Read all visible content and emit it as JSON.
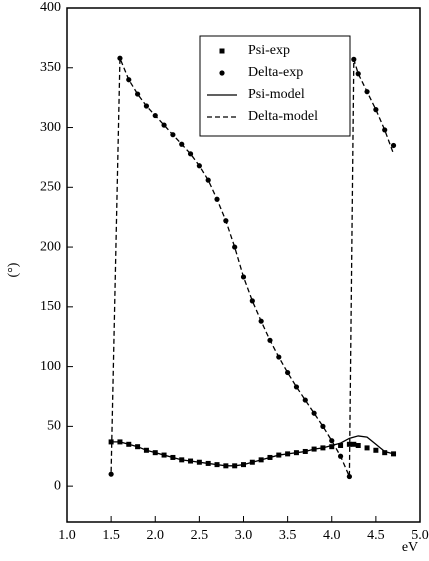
{
  "chart_data": {
    "type": "line",
    "xlabel": "eV",
    "ylabel": "(°)",
    "xlim": [
      1.0,
      5.0
    ],
    "xticks": [
      {
        "value": 1.0,
        "label": "1.0"
      },
      {
        "value": 1.5,
        "label": "1.5"
      },
      {
        "value": 2.0,
        "label": "2.0"
      },
      {
        "value": 2.5,
        "label": "2.5"
      },
      {
        "value": 3.0,
        "label": "3.0"
      },
      {
        "value": 3.5,
        "label": "3.5"
      },
      {
        "value": 4.0,
        "label": "4.0"
      },
      {
        "value": 4.5,
        "label": "4.5"
      },
      {
        "value": 5.0,
        "label": "5.0"
      }
    ],
    "ylim": [
      -30,
      400
    ],
    "yticks": [
      0,
      50,
      100,
      150,
      200,
      250,
      300,
      350,
      400
    ],
    "legend": "upper right",
    "x": [
      1.5,
      1.6,
      1.7,
      1.8,
      1.9,
      2.0,
      2.1,
      2.2,
      2.3,
      2.4,
      2.5,
      2.6,
      2.7,
      2.8,
      2.9,
      3.0,
      3.1,
      3.2,
      3.3,
      3.4,
      3.5,
      3.6,
      3.7,
      3.8,
      3.9,
      4.0,
      4.1,
      4.2,
      4.25,
      4.3,
      4.4,
      4.5,
      4.6,
      4.7
    ],
    "series": [
      {
        "name": "Psi-exp",
        "color": "#000000",
        "marker": "square",
        "values": [
          37,
          37,
          35,
          33,
          30,
          28,
          26,
          24,
          22,
          21,
          20,
          19,
          18,
          17,
          17,
          18,
          20,
          22,
          24,
          26,
          27,
          28,
          29,
          31,
          32,
          33,
          34,
          35,
          35,
          34,
          32,
          30,
          28,
          27
        ]
      },
      {
        "name": "Delta-exp",
        "color": "#000000",
        "marker": "circle",
        "values": [
          10,
          358,
          340,
          328,
          318,
          310,
          302,
          294,
          286,
          278,
          268,
          256,
          240,
          222,
          200,
          175,
          155,
          138,
          122,
          108,
          95,
          83,
          72,
          61,
          50,
          38,
          25,
          8,
          357,
          345,
          330,
          315,
          298,
          285
        ]
      },
      {
        "name": "Psi-model",
        "color": "#000000",
        "line": "solid",
        "values": [
          37,
          37,
          35,
          33,
          30,
          28,
          26,
          24,
          22,
          21,
          20,
          19,
          18,
          17,
          17,
          18,
          20,
          22,
          24,
          26,
          27,
          28,
          29,
          31,
          32,
          34,
          36,
          40,
          41,
          42,
          41,
          35,
          29,
          27
        ]
      },
      {
        "name": "Delta-model",
        "color": "#000000",
        "line": "dashed",
        "values": [
          12,
          358,
          340,
          328,
          318,
          310,
          302,
          294,
          286,
          278,
          268,
          256,
          240,
          222,
          200,
          175,
          155,
          138,
          122,
          108,
          95,
          83,
          72,
          61,
          50,
          38,
          25,
          8,
          357,
          345,
          330,
          315,
          298,
          278
        ]
      }
    ]
  }
}
